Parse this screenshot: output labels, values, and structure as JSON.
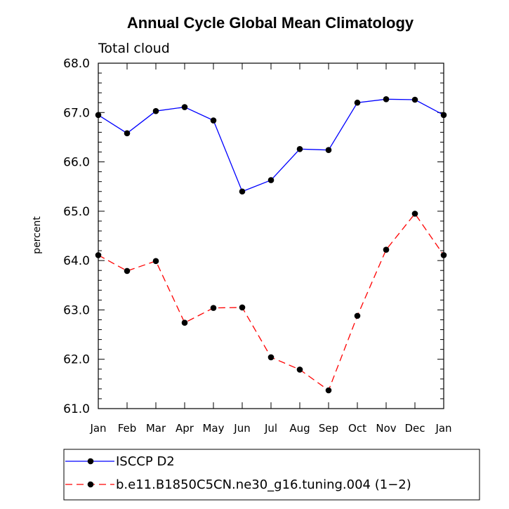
{
  "chart_data": {
    "type": "line",
    "title": "Annual Cycle Global Mean Climatology",
    "subtitle": "Total cloud",
    "xlabel": "",
    "ylabel": "percent",
    "categories": [
      "Jan",
      "Feb",
      "Mar",
      "Apr",
      "May",
      "Jun",
      "Jul",
      "Aug",
      "Sep",
      "Oct",
      "Nov",
      "Dec",
      "Jan"
    ],
    "ylim": [
      61.0,
      68.0
    ],
    "yticks": [
      "61.0",
      "62.0",
      "63.0",
      "64.0",
      "65.0",
      "66.0",
      "67.0",
      "68.0"
    ],
    "series": [
      {
        "name": "ISCCP D2",
        "color": "#0000ff",
        "dash": "solid",
        "marker": "circle",
        "values": [
          66.95,
          66.58,
          67.03,
          67.11,
          66.84,
          65.4,
          65.63,
          66.26,
          66.24,
          67.2,
          67.27,
          67.26,
          66.95
        ]
      },
      {
        "name": "b.e11.B1850C5CN.ne30_g16.tuning.004 (1−2)",
        "color": "#ff0000",
        "dash": "dashed",
        "marker": "circle",
        "values": [
          64.11,
          63.79,
          63.99,
          62.74,
          63.04,
          63.05,
          62.04,
          61.79,
          61.37,
          62.88,
          64.22,
          64.95,
          64.11
        ]
      }
    ],
    "legend_position": "bottom"
  }
}
